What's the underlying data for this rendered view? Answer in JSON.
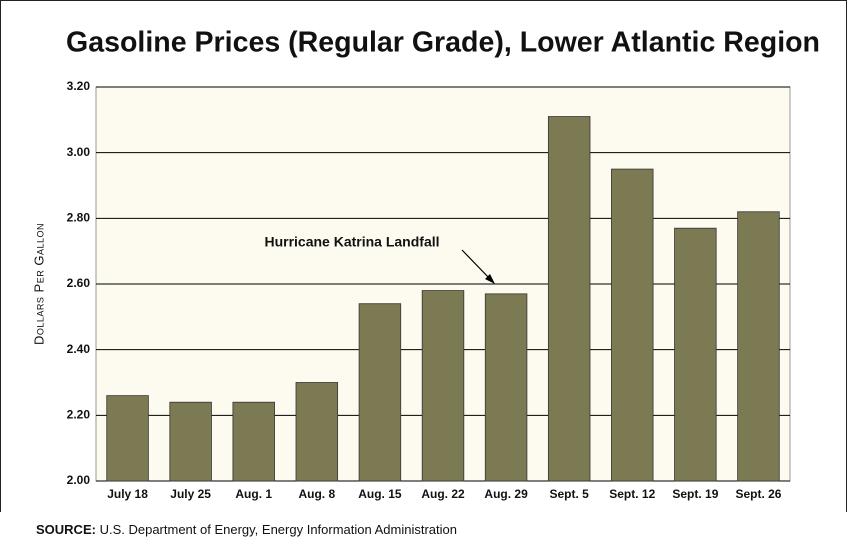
{
  "chart_data": {
    "type": "bar",
    "title": "Gasoline Prices (Regular Grade), Lower Atlantic Region",
    "y_label": "Dollars Per Gallon",
    "annotation": "Hurricane Katrina Landfall",
    "source_label": "SOURCE:",
    "source": "U.S. Department of Energy, Energy Information Administration",
    "categories": [
      "July 18",
      "July 25",
      "Aug. 1",
      "Aug. 8",
      "Aug. 15",
      "Aug. 22",
      "Aug. 29",
      "Sept. 5",
      "Sept. 12",
      "Sept. 19",
      "Sept. 26"
    ],
    "values": [
      2.26,
      2.24,
      2.24,
      2.3,
      2.54,
      2.58,
      2.57,
      3.11,
      2.95,
      2.77,
      2.82
    ],
    "color": "#7b7a52",
    "ylim": [
      2.0,
      3.2
    ],
    "yticks": [
      {
        "value": 2.0,
        "label": "2.00"
      },
      {
        "value": 2.2,
        "label": "2.20"
      },
      {
        "value": 2.4,
        "label": "2.40"
      },
      {
        "value": 2.6,
        "label": "2.60"
      },
      {
        "value": 2.8,
        "label": "2.80"
      },
      {
        "value": 3.0,
        "label": "3.00"
      },
      {
        "value": 3.2,
        "label": "3.20"
      }
    ],
    "grid": true
  }
}
